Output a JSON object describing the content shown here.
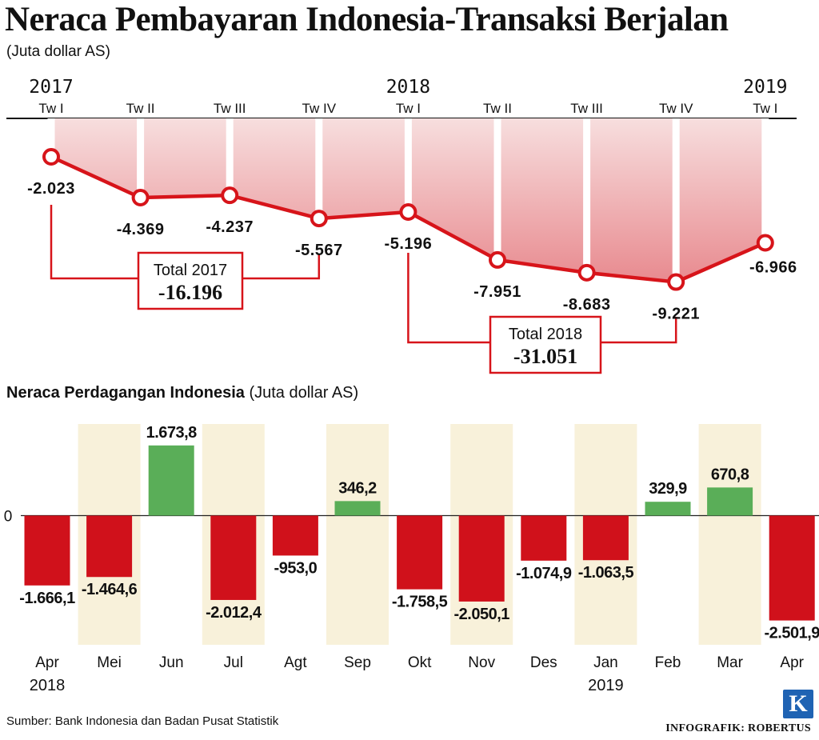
{
  "header": {
    "title": "Neraca Pembayaran Indonesia-Transaksi Berjalan",
    "subtitle": "(Juta dollar AS)"
  },
  "trade_header": {
    "title_bold": "Neraca Perdagangan Indonesia",
    "title_unit": " (Juta dollar AS)"
  },
  "footer": {
    "source": "Sumber: Bank Indonesia dan Badan Pusat Statistik",
    "credit": "INFOGRAFIK: ROBERTUS",
    "logo_letter": "K"
  },
  "colors": {
    "line_red": "#d7141a",
    "area_top": "#f7dede",
    "area_bottom": "#e88a8f",
    "bar_negative": "#d0111b",
    "bar_positive": "#5aae58",
    "band_fill": "#f8f1da"
  },
  "chart_data": [
    {
      "type": "line",
      "title": "Neraca Pembayaran Indonesia-Transaksi Berjalan",
      "unit": "(Juta dollar AS)",
      "quarters": [
        "Tw I",
        "Tw II",
        "Tw III",
        "Tw IV",
        "Tw I",
        "Tw II",
        "Tw III",
        "Tw IV",
        "Tw I"
      ],
      "years": [
        {
          "label": "2017",
          "index": 0
        },
        {
          "label": "2018",
          "index": 4
        },
        {
          "label": "2019",
          "index": 8
        }
      ],
      "values": [
        -2023,
        -4369,
        -4237,
        -5567,
        -5196,
        -7951,
        -8683,
        -9221,
        -6966
      ],
      "labels": [
        "-2.023",
        "-4.369",
        "-4.237",
        "-5.567",
        "-5.196",
        "-7.951",
        "-8.683",
        "-9.221",
        "-6.966"
      ],
      "ylim": [
        -10000,
        0
      ],
      "totals": [
        {
          "label": "Total 2017",
          "value": "-16.196",
          "from": 0,
          "to": 3
        },
        {
          "label": "Total 2018",
          "value": "-31.051",
          "from": 4,
          "to": 7
        }
      ]
    },
    {
      "type": "bar",
      "title": "Neraca Perdagangan Indonesia",
      "unit": "(Juta dollar AS)",
      "categories": [
        "Apr",
        "Mei",
        "Jun",
        "Jul",
        "Agt",
        "Sep",
        "Okt",
        "Nov",
        "Des",
        "Jan",
        "Feb",
        "Mar",
        "Apr"
      ],
      "year_labels": [
        {
          "label": "2018",
          "index": 0
        },
        {
          "label": "2019",
          "index": 9
        }
      ],
      "values": [
        -1666.1,
        -1464.6,
        1673.8,
        -2012.4,
        -953.0,
        346.2,
        -1758.5,
        -2050.1,
        -1074.9,
        -1063.5,
        329.9,
        670.8,
        -2501.9
      ],
      "labels": [
        "-1.666,1",
        "-1.464,6",
        "1.673,8",
        "-2.012,4",
        "-953,0",
        "346,2",
        "-1.758,5",
        "-2.050,1",
        "-1.074,9",
        "-1.063,5",
        "329,9",
        "670,8",
        "-2.501,9"
      ],
      "zero_label": "0",
      "shaded_months": [
        1,
        3,
        5,
        7,
        9,
        11
      ]
    }
  ]
}
